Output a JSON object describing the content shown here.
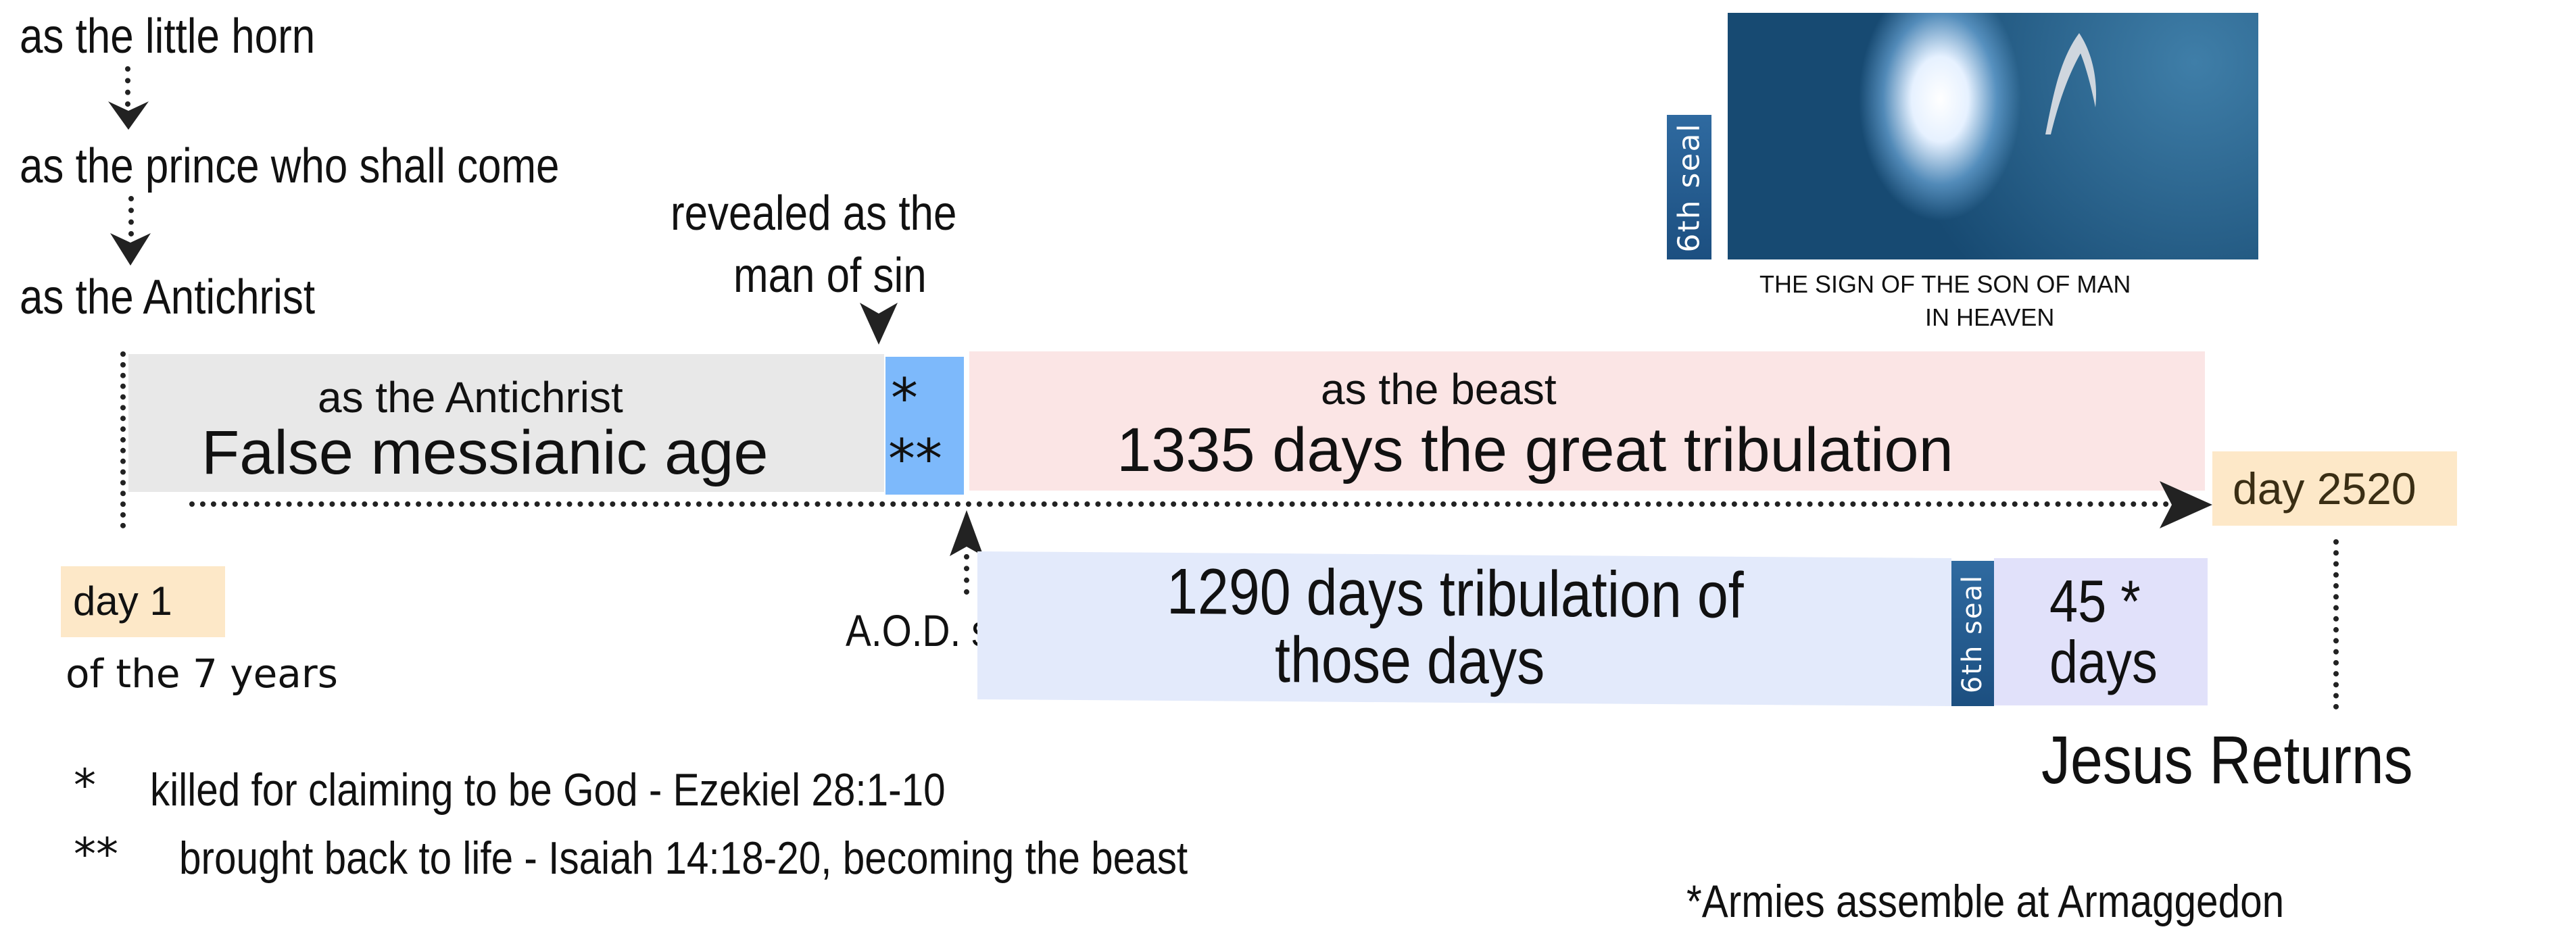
{
  "stages": {
    "little_horn": "as the little horn",
    "prince": "as the prince who shall come",
    "antichrist": "as the Antichrist"
  },
  "revealed": {
    "line1": "revealed as the",
    "line2": "man of sin"
  },
  "segments": {
    "false_age": {
      "subtitle": "as the Antichrist",
      "title": "False messianic age",
      "color": "#e8e8e8"
    },
    "stars": {
      "line1": "*",
      "line2": "**",
      "color": "#7db9fb"
    },
    "great_tribulation": {
      "subtitle": "as the beast",
      "title": "1335 days the great tribulation",
      "color": "#fbe5e5"
    },
    "tribulation_1290": {
      "line1": "1290 days tribulation of",
      "line2": "those days",
      "color": "#e3eafb"
    },
    "seal_small": {
      "label": "6th seal",
      "color": "#2a6399"
    },
    "days_45": {
      "line1": "45 *",
      "line2": "days",
      "color": "#e1e1fa"
    }
  },
  "markers": {
    "day1": {
      "label": "day 1",
      "sub": "of the 7 years",
      "color": "#fde8c8"
    },
    "day2520": {
      "label": "day 2520",
      "color": "#fde8c8"
    },
    "aod": "A.O.D. setup",
    "jesus_returns": "Jesus Returns"
  },
  "sign": {
    "seal_label": "6th seal",
    "caption_line1": "THE SIGN OF THE SON OF MAN",
    "caption_line2": "IN HEAVEN"
  },
  "footnotes": {
    "note1_mark": "*",
    "note1": "killed for claiming to be God - Ezekiel 28:1-10",
    "note2_mark": "**",
    "note2": "brought back to life - Isaiah 14:18-20, becoming the beast",
    "note3": "*Armies assemble at Armaggedon"
  }
}
